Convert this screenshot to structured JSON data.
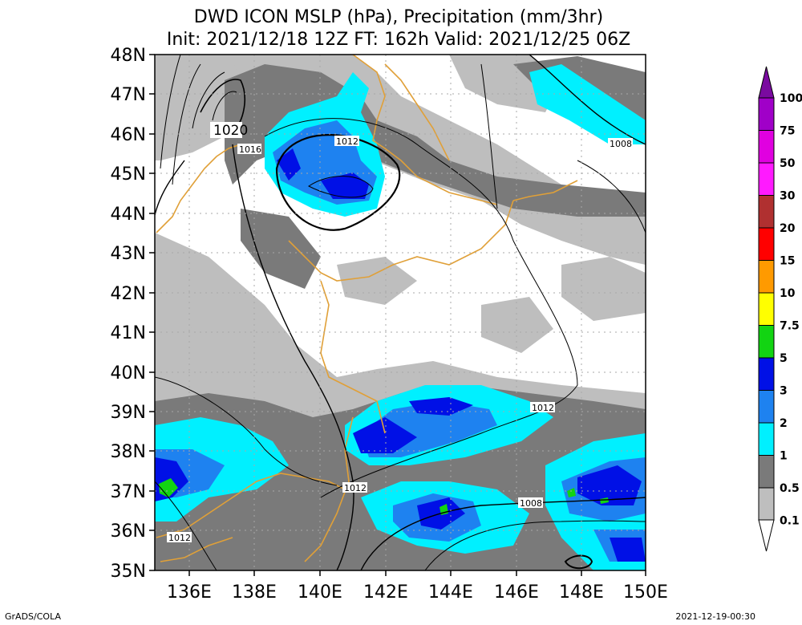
{
  "title_line1": "DWD ICON MSLP (hPa), Precipitation (mm/3hr)",
  "title_line2": "Init: 2021/12/18 12Z  FT: 162h  Valid: 2021/12/25 06Z",
  "lat_labels": [
    "48N",
    "47N",
    "46N",
    "45N",
    "44N",
    "43N",
    "42N",
    "41N",
    "40N",
    "39N",
    "38N",
    "37N",
    "36N",
    "35N"
  ],
  "lon_labels": [
    "136E",
    "138E",
    "140E",
    "142E",
    "144E",
    "146E",
    "148E",
    "150E"
  ],
  "isobar_labels": [
    "1020",
    "1016",
    "1012",
    "1008",
    "1012",
    "1012",
    "1008",
    "1012"
  ],
  "legend": {
    "labels": [
      "100",
      "75",
      "50",
      "30",
      "20",
      "15",
      "10",
      "7.5",
      "5",
      "3",
      "2",
      "1",
      "0.5",
      "0.1"
    ],
    "colors": [
      "#7a0aa0",
      "#a000c8",
      "#e000e0",
      "#ff1aff",
      "#b03030",
      "#ff0000",
      "#ff9a00",
      "#ffff00",
      "#12d412",
      "#0010e6",
      "#1e82f0",
      "#00f0ff",
      "#7a7a7a",
      "#bebebe",
      "#ffffff"
    ]
  },
  "footer_left": "GrADS/COLA",
  "footer_right": "2021-12-19-00:30"
}
